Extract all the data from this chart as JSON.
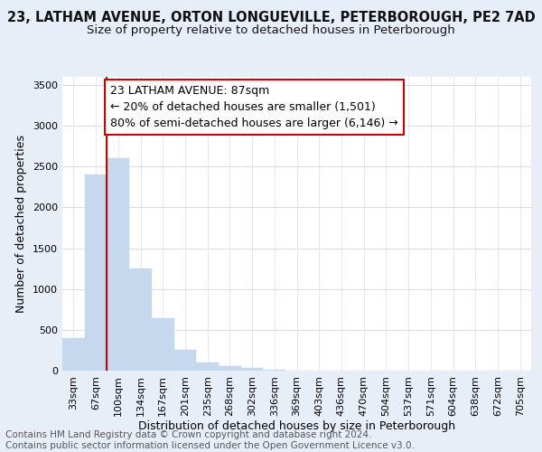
{
  "title_line1": "23, LATHAM AVENUE, ORTON LONGUEVILLE, PETERBOROUGH, PE2 7AD",
  "title_line2": "Size of property relative to detached houses in Peterborough",
  "xlabel": "Distribution of detached houses by size in Peterborough",
  "ylabel": "Number of detached properties",
  "categories": [
    "33sqm",
    "67sqm",
    "100sqm",
    "134sqm",
    "167sqm",
    "201sqm",
    "235sqm",
    "268sqm",
    "302sqm",
    "336sqm",
    "369sqm",
    "403sqm",
    "436sqm",
    "470sqm",
    "504sqm",
    "537sqm",
    "571sqm",
    "604sqm",
    "638sqm",
    "672sqm",
    "705sqm"
  ],
  "values": [
    400,
    2400,
    2600,
    1250,
    640,
    250,
    100,
    50,
    30,
    10,
    5,
    5,
    0,
    0,
    0,
    0,
    0,
    0,
    0,
    0,
    0
  ],
  "bar_color": "#c5d8ee",
  "bar_edgecolor": "#c5d8ee",
  "annotation_text": "23 LATHAM AVENUE: 87sqm\n← 20% of detached houses are smaller (1,501)\n80% of semi-detached houses are larger (6,146) →",
  "annotation_box_facecolor": "#ffffff",
  "annotation_box_edgecolor": "#cc0000",
  "vline_color": "#cc0000",
  "footer_line1": "Contains HM Land Registry data © Crown copyright and database right 2024.",
  "footer_line2": "Contains public sector information licensed under the Open Government Licence v3.0.",
  "background_color": "#e8eef8",
  "plot_background_color": "#ffffff",
  "ylim": [
    0,
    3600
  ],
  "yticks": [
    0,
    500,
    1000,
    1500,
    2000,
    2500,
    3000,
    3500
  ],
  "grid_color": "#ddddee",
  "title_fontsize": 10.5,
  "subtitle_fontsize": 9.5,
  "label_fontsize": 9,
  "tick_fontsize": 8,
  "annotation_fontsize": 9,
  "footer_fontsize": 7.5,
  "vline_x_index": 1.5
}
